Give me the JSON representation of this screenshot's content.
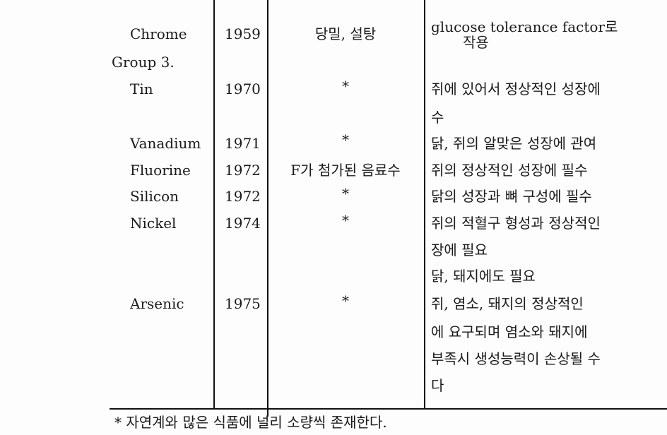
{
  "rows": [
    {
      "element": "Chrome",
      "year": "1959",
      "source": "당밀, 설탕",
      "function": [
        "glucose tolerance factor로",
        "작용"
      ]
    },
    {
      "group": "Group 3."
    },
    {
      "element": "Tin",
      "year": "1970",
      "source": "*",
      "function": [
        "쥐에 있어서 정상적인 성장에",
        "수"
      ]
    },
    {
      "element": "Vanadium",
      "year": "1971",
      "source": "*",
      "function": [
        "닭, 쥐의 알맞은 성장에 관여"
      ]
    },
    {
      "element": "Fluorine",
      "year": "1972",
      "source": "F가 첨가된 음료수",
      "function": [
        "쥐의 정상적인 성장에 필수"
      ]
    },
    {
      "element": "Silicon",
      "year": "1972",
      "source": "*",
      "function": [
        "닭의 성장과 뼈 구성에 필수"
      ]
    },
    {
      "element": "Nickel",
      "year": "1974",
      "source": "*",
      "function": [
        "쥐의 적혈구 형성과 정상적인",
        "장에 필요",
        "닭, 돼지에도 필요"
      ]
    },
    {
      "element": "Arsenic",
      "year": "1975",
      "source": "*",
      "function": [
        "쥐, 염소, 돼지의 정상적인",
        "에 요구되며 염소와 돼지에",
        "부족시 생성능력이 손상될 수",
        "다"
      ]
    }
  ],
  "footnote": "* 자연계와 많은 식품에 널리 소량씩 존재한다."
}
